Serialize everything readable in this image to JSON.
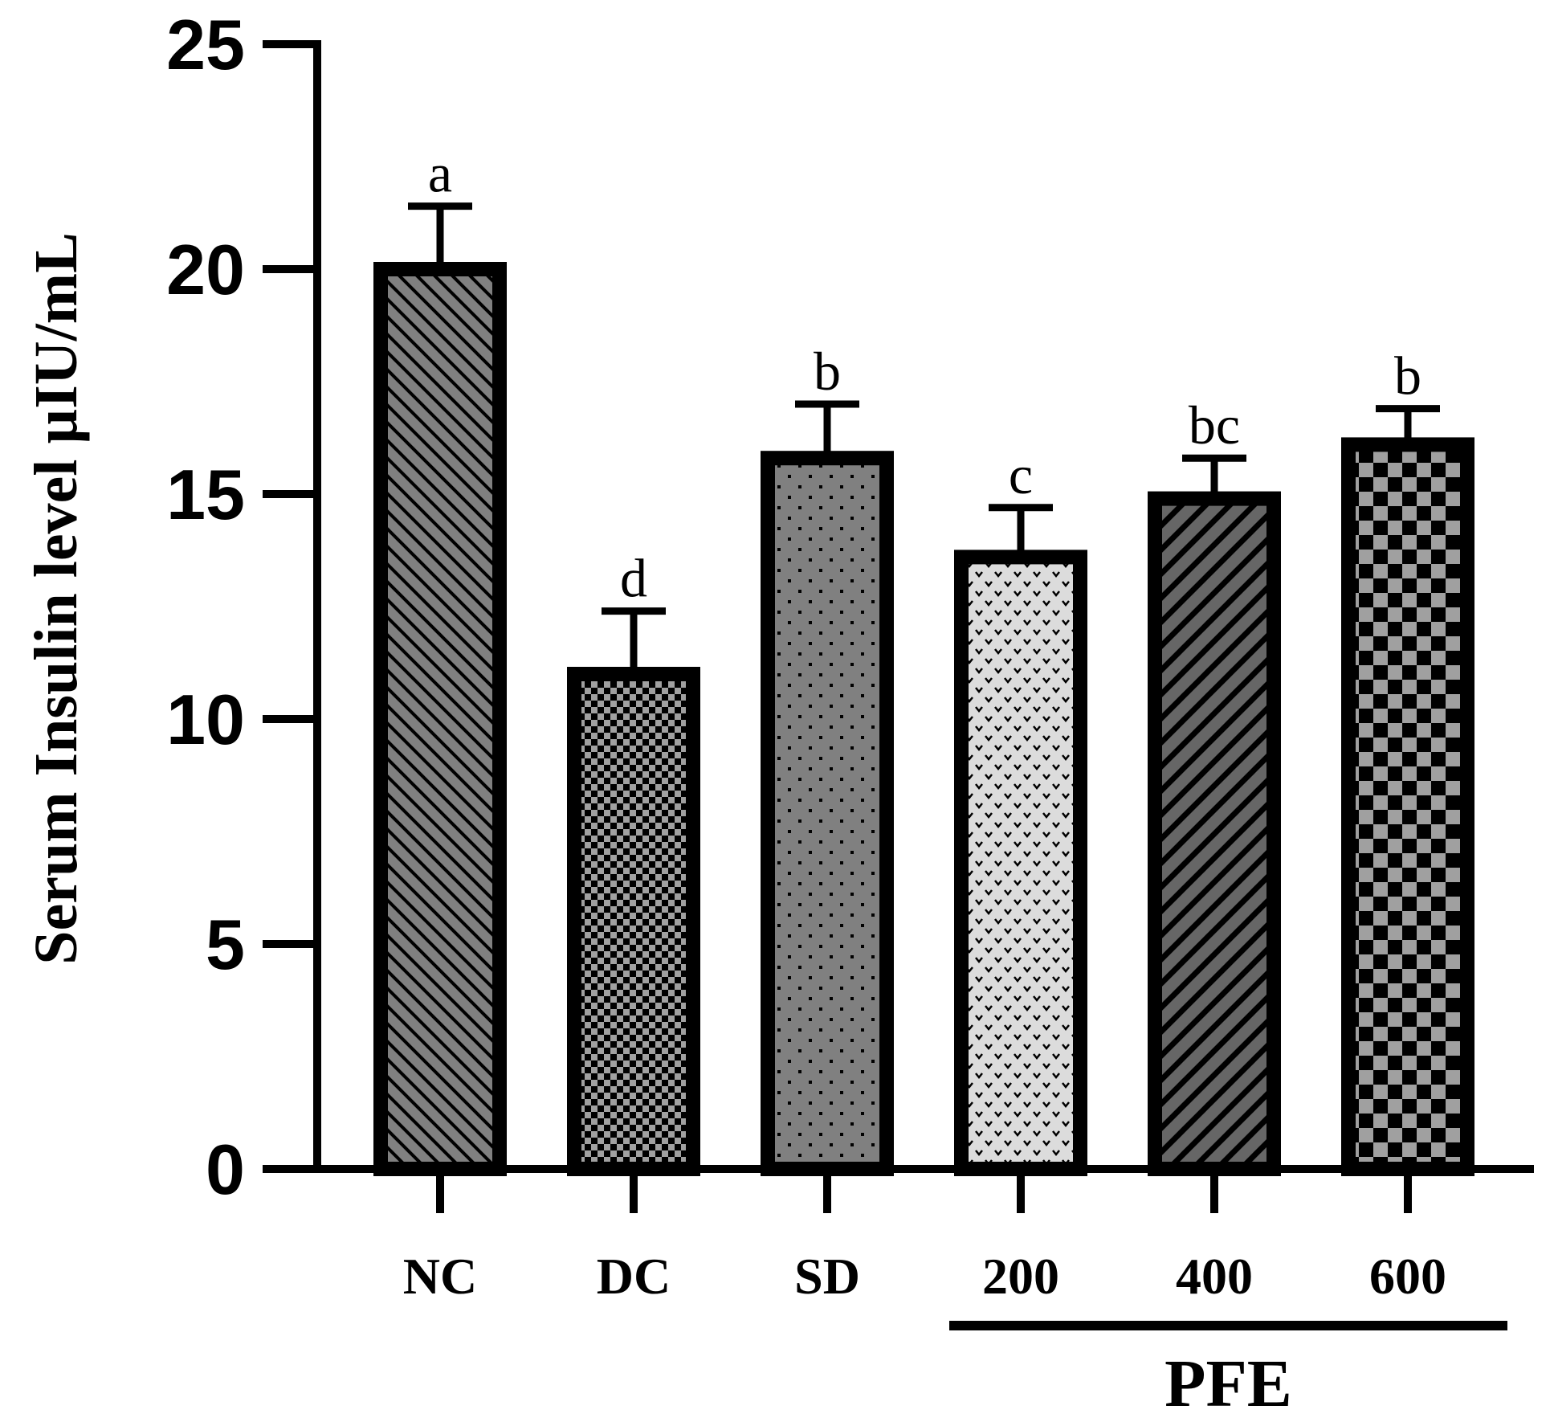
{
  "chart_data": {
    "type": "bar",
    "title": "",
    "xlabel": "",
    "ylabel": "Serum Insulin level µIU/mL",
    "ylim": [
      0,
      25
    ],
    "yticks": [
      0,
      5,
      10,
      15,
      20,
      25
    ],
    "categories": [
      "NC",
      "DC",
      "SD",
      "200",
      "400",
      "600"
    ],
    "values": [
      20.0,
      11.0,
      15.8,
      13.6,
      14.9,
      16.1
    ],
    "errors": [
      1.4,
      1.4,
      1.2,
      1.1,
      0.9,
      0.8
    ],
    "significance_letters": [
      "a",
      "d",
      "b",
      "c",
      "bc",
      "b"
    ],
    "patterns": [
      "diagonal-back",
      "fine-check",
      "dots",
      "hearts",
      "diagonal-forward",
      "large-check"
    ],
    "group_label": "PFE",
    "group_categories": [
      "200",
      "400",
      "600"
    ],
    "colors": {
      "outline": "#000000",
      "fill_mid": "#808080",
      "fill_dark": "#666666",
      "fill_light": "#dcdcdc",
      "checker_light": "#a0a0a0"
    }
  }
}
